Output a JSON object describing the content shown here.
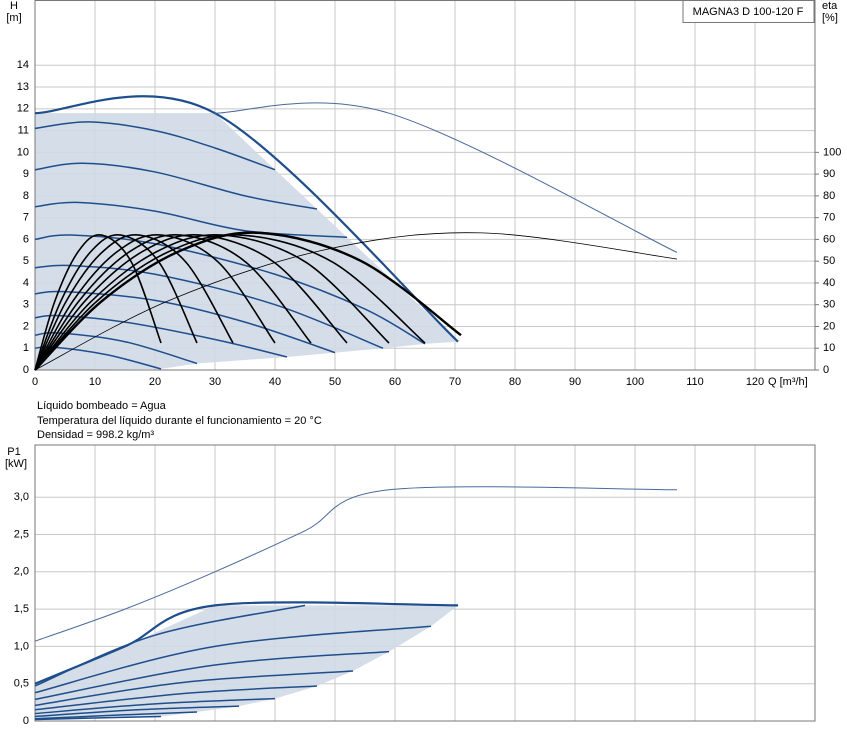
{
  "chart_data": [
    {
      "type": "line",
      "title": "MAGNA3 D 100-120 F",
      "ylabel": "H",
      "yunit": "[m]",
      "y2label": "eta",
      "y2unit": "[%]",
      "xlabel": "Q [m³/h]",
      "xlim": [
        0,
        130
      ],
      "ylim": [
        0,
        17
      ],
      "y2lim": [
        0,
        170
      ],
      "xticks": [
        0,
        10,
        20,
        30,
        40,
        50,
        60,
        70,
        80,
        90,
        100,
        110,
        120
      ],
      "yticks": [
        0,
        1,
        2,
        3,
        4,
        5,
        6,
        7,
        8,
        9,
        10,
        11,
        12,
        13,
        14
      ],
      "y2ticks": [
        0,
        10,
        20,
        30,
        40,
        50,
        60,
        70,
        80,
        90,
        100
      ],
      "xtick_labels": true,
      "grid": true,
      "area": {
        "color": "#cfd9e5",
        "x": [
          0,
          30,
          70.5,
          65,
          58,
          50,
          42,
          27,
          21,
          0
        ],
        "values": [
          11.8,
          11.8,
          1.3,
          1.2,
          1.0,
          0.8,
          0.6,
          0.3,
          0.05,
          0
        ]
      },
      "series": [
        {
          "color": "#1f4e8c",
          "width": 2.2,
          "x": [
            0,
            30,
            70.5
          ],
          "values": [
            11.8,
            11.8,
            1.3
          ]
        },
        {
          "color": "#4a6a9a",
          "width": 1,
          "x": [
            30,
            59,
            107
          ],
          "values": [
            11.8,
            11.8,
            5.4
          ]
        },
        {
          "color": "#1f4e8c",
          "width": 1.5,
          "x": [
            0,
            9,
            20,
            30,
            40
          ],
          "values": [
            11.1,
            11.4,
            11.0,
            10.2,
            9.2
          ]
        },
        {
          "color": "#1f4e8c",
          "width": 1.5,
          "x": [
            0,
            8,
            20,
            35,
            47
          ],
          "values": [
            9.2,
            9.5,
            9.1,
            8.0,
            7.4
          ]
        },
        {
          "color": "#1f4e8c",
          "width": 1.5,
          "x": [
            0,
            7,
            20,
            35,
            52
          ],
          "values": [
            7.5,
            7.7,
            7.3,
            6.4,
            6.1
          ]
        },
        {
          "color": "#1f4e8c",
          "width": 1.5,
          "x": [
            0,
            6,
            20,
            40,
            55,
            65
          ],
          "values": [
            6.0,
            6.2,
            5.8,
            4.4,
            2.8,
            1.2
          ]
        },
        {
          "color": "#1f4e8c",
          "width": 1.5,
          "x": [
            0,
            6,
            20,
            40,
            58
          ],
          "values": [
            4.7,
            4.8,
            4.4,
            3.0,
            1.0
          ]
        },
        {
          "color": "#1f4e8c",
          "width": 1.5,
          "x": [
            0,
            5,
            20,
            35,
            50
          ],
          "values": [
            3.5,
            3.6,
            3.2,
            2.2,
            0.8
          ]
        },
        {
          "color": "#1f4e8c",
          "width": 1.5,
          "x": [
            0,
            4,
            15,
            30,
            42
          ],
          "values": [
            2.4,
            2.5,
            2.2,
            1.4,
            0.6
          ]
        },
        {
          "color": "#1f4e8c",
          "width": 1.5,
          "x": [
            0,
            4,
            15,
            27
          ],
          "values": [
            1.6,
            1.7,
            1.3,
            0.3
          ]
        },
        {
          "color": "#1f4e8c",
          "width": 1.5,
          "x": [
            0,
            3,
            12,
            21
          ],
          "values": [
            1.0,
            1.05,
            0.7,
            0.05
          ]
        },
        {
          "color": "#000000",
          "width": 1.6,
          "axis": "y2",
          "x": [
            0,
            3.3,
            7.2,
            11.1,
            16.1,
            21
          ],
          "values": [
            0,
            31.6,
            54.4,
            62,
            49.4,
            12.4
          ]
        },
        {
          "color": "#000000",
          "width": 1.6,
          "axis": "y2",
          "x": [
            0,
            4.3,
            9.3,
            14.3,
            20.7,
            27
          ],
          "values": [
            0,
            31.6,
            54.4,
            62,
            49.4,
            12.4
          ]
        },
        {
          "color": "#000000",
          "width": 1.6,
          "axis": "y2",
          "x": [
            0,
            5.2,
            11.3,
            17.4,
            25.2,
            33
          ],
          "values": [
            0,
            31.6,
            54.4,
            62,
            49.4,
            12.4
          ]
        },
        {
          "color": "#000000",
          "width": 1.6,
          "axis": "y2",
          "x": [
            0,
            6.3,
            13.7,
            21.1,
            30.6,
            40
          ],
          "values": [
            0,
            31.6,
            54.4,
            62,
            49.4,
            12.4
          ]
        },
        {
          "color": "#000000",
          "width": 1.6,
          "axis": "y2",
          "x": [
            0,
            7.3,
            15.8,
            24.3,
            35.2,
            46
          ],
          "values": [
            0,
            31.6,
            54.4,
            62,
            49.4,
            12.4
          ]
        },
        {
          "color": "#000000",
          "width": 1.6,
          "axis": "y2",
          "x": [
            0,
            8.3,
            17.9,
            27.5,
            39.9,
            52
          ],
          "values": [
            0,
            31.6,
            54.4,
            62,
            49.4,
            12.4
          ]
        },
        {
          "color": "#000000",
          "width": 1.6,
          "axis": "y2",
          "x": [
            0,
            9.4,
            20.3,
            31.2,
            45.2,
            59
          ],
          "values": [
            0,
            31.6,
            54.4,
            62,
            49.4,
            12.4
          ]
        },
        {
          "color": "#000000",
          "width": 1.6,
          "axis": "y2",
          "x": [
            0,
            10.3,
            22.3,
            34.3,
            49.7,
            65
          ],
          "values": [
            0,
            31.6,
            54.4,
            62,
            49.4,
            12.4
          ]
        },
        {
          "color": "#000000",
          "width": 2.4,
          "axis": "y2",
          "x": [
            0,
            11.3,
            24.4,
            37.5,
            54.4,
            71
          ],
          "values": [
            0,
            32,
            55,
            63,
            50,
            16
          ]
        },
        {
          "color": "#000000",
          "width": 0.8,
          "axis": "y2",
          "x": [
            0,
            22.4,
            48.4,
            74.5,
            107
          ],
          "values": [
            0,
            32,
            55.3,
            63,
            51
          ]
        }
      ]
    },
    {
      "type": "line",
      "notes": [
        "Líquido bombeado = Agua",
        "Temperatura del líquido durante el funcionamiento = 20 °C",
        "Densidad = 998.2 kg/m³"
      ],
      "ylabel": "P1",
      "yunit": "[kW]",
      "xlim": [
        0,
        130
      ],
      "ylim": [
        0,
        3.7
      ],
      "xticks": [
        0,
        10,
        20,
        30,
        40,
        50,
        60,
        70,
        80,
        90,
        100,
        110,
        120
      ],
      "yticks": [
        0,
        {
          "value": 0.5,
          "label": "0,5"
        },
        {
          "value": 1.0,
          "label": "1,0"
        },
        {
          "value": 1.5,
          "label": "1,5"
        },
        {
          "value": 2.0,
          "label": "2,0"
        },
        {
          "value": 2.5,
          "label": "2,5"
        },
        {
          "value": 3.0,
          "label": "3,0"
        }
      ],
      "xtick_labels": false,
      "grid": true,
      "area": {
        "color": "#cfd9e5",
        "x": [
          0,
          15,
          30,
          70.5,
          66,
          59,
          53,
          47,
          40,
          34,
          27,
          21,
          0
        ],
        "values": [
          0.5,
          1.0,
          1.55,
          1.55,
          1.27,
          0.93,
          0.67,
          0.47,
          0.3,
          0.2,
          0.12,
          0.06,
          0.02
        ]
      },
      "series": [
        {
          "color": "#4a6a9a",
          "width": 1,
          "x": [
            0,
            15,
            30,
            45,
            59,
            107
          ],
          "values": [
            1.07,
            1.5,
            2.0,
            2.55,
            3.1,
            3.1
          ]
        },
        {
          "color": "#1f4e8c",
          "width": 2.2,
          "x": [
            0,
            15,
            30,
            70.5
          ],
          "values": [
            0.5,
            1.0,
            1.55,
            1.55
          ]
        },
        {
          "color": "#1f4e8c",
          "width": 1.5,
          "x": [
            0,
            20,
            45
          ],
          "values": [
            0.47,
            1.15,
            1.55
          ]
        },
        {
          "color": "#1f4e8c",
          "width": 1.5,
          "x": [
            0,
            30,
            66
          ],
          "values": [
            0.38,
            1.0,
            1.27
          ]
        },
        {
          "color": "#1f4e8c",
          "width": 1.5,
          "x": [
            0,
            30,
            59
          ],
          "values": [
            0.29,
            0.75,
            0.93
          ]
        },
        {
          "color": "#1f4e8c",
          "width": 1.5,
          "x": [
            0,
            25,
            53
          ],
          "values": [
            0.21,
            0.52,
            0.67
          ]
        },
        {
          "color": "#1f4e8c",
          "width": 1.5,
          "x": [
            0,
            25,
            47
          ],
          "values": [
            0.15,
            0.37,
            0.47
          ]
        },
        {
          "color": "#1f4e8c",
          "width": 1.5,
          "x": [
            0,
            20,
            40
          ],
          "values": [
            0.1,
            0.23,
            0.3
          ]
        },
        {
          "color": "#1f4e8c",
          "width": 1.5,
          "x": [
            0,
            17,
            34
          ],
          "values": [
            0.06,
            0.15,
            0.2
          ]
        },
        {
          "color": "#1f4e8c",
          "width": 1.5,
          "x": [
            0,
            14,
            27
          ],
          "values": [
            0.03,
            0.08,
            0.12
          ]
        },
        {
          "color": "#1f4e8c",
          "width": 1.5,
          "x": [
            0,
            10,
            21
          ],
          "values": [
            0.02,
            0.04,
            0.06
          ]
        }
      ]
    }
  ]
}
